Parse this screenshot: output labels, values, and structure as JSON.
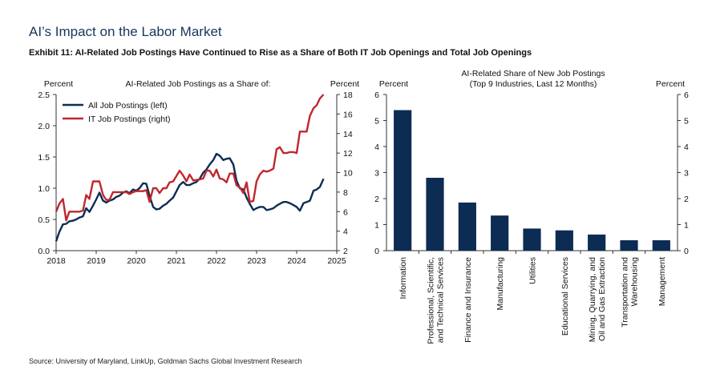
{
  "header": {
    "title": "AI’s Impact on the Labor Market",
    "exhibit": "Exhibit 11: AI-Related Job Postings Have Continued to Rise as a Share of Both IT Job Openings and Total Job Openings"
  },
  "footer": {
    "source": "Source: University of Maryland, LinkUp, Goldman Sachs Global Investment Research"
  },
  "colors": {
    "title": "#16365c",
    "all_jobs": "#0d2c54",
    "it_jobs": "#c0272d",
    "bar": "#0d2c54"
  },
  "chart_data": [
    {
      "type": "line",
      "title": "AI-Related Job Postings as a Share of:",
      "ylabel_left": "Percent",
      "ylabel_right": "Percent",
      "xlim": [
        2018,
        2025
      ],
      "ylim_left": [
        0,
        2.5
      ],
      "ylim_right": [
        2,
        18
      ],
      "x_ticks": [
        "2018",
        "2019",
        "2020",
        "2021",
        "2022",
        "2023",
        "2024",
        "2025"
      ],
      "y_ticks_left": [
        "0.0",
        "0.5",
        "1.0",
        "1.5",
        "2.0",
        "2.5"
      ],
      "y_ticks_right": [
        "2",
        "4",
        "6",
        "8",
        "10",
        "12",
        "14",
        "16",
        "18"
      ],
      "legend_position": "top-left",
      "grid": false,
      "series": [
        {
          "name": "All Job Postings (left)",
          "axis": "left",
          "points": [
            [
              2018.0,
              0.15
            ],
            [
              2018.08,
              0.3
            ],
            [
              2018.17,
              0.42
            ],
            [
              2018.25,
              0.43
            ],
            [
              2018.33,
              0.47
            ],
            [
              2018.42,
              0.48
            ],
            [
              2018.5,
              0.5
            ],
            [
              2018.58,
              0.53
            ],
            [
              2018.67,
              0.55
            ],
            [
              2018.75,
              0.68
            ],
            [
              2018.83,
              0.62
            ],
            [
              2018.92,
              0.72
            ],
            [
              2019.0,
              0.82
            ],
            [
              2019.08,
              0.93
            ],
            [
              2019.17,
              0.8
            ],
            [
              2019.25,
              0.77
            ],
            [
              2019.33,
              0.8
            ],
            [
              2019.42,
              0.82
            ],
            [
              2019.5,
              0.86
            ],
            [
              2019.58,
              0.88
            ],
            [
              2019.67,
              0.93
            ],
            [
              2019.75,
              0.95
            ],
            [
              2019.83,
              0.92
            ],
            [
              2019.92,
              0.98
            ],
            [
              2020.0,
              0.96
            ],
            [
              2020.08,
              1.0
            ],
            [
              2020.17,
              1.08
            ],
            [
              2020.25,
              1.07
            ],
            [
              2020.33,
              0.88
            ],
            [
              2020.42,
              0.7
            ],
            [
              2020.5,
              0.66
            ],
            [
              2020.58,
              0.67
            ],
            [
              2020.67,
              0.72
            ],
            [
              2020.75,
              0.75
            ],
            [
              2020.83,
              0.8
            ],
            [
              2020.92,
              0.85
            ],
            [
              2021.0,
              0.95
            ],
            [
              2021.08,
              1.05
            ],
            [
              2021.17,
              1.1
            ],
            [
              2021.25,
              1.05
            ],
            [
              2021.33,
              1.05
            ],
            [
              2021.42,
              1.08
            ],
            [
              2021.5,
              1.1
            ],
            [
              2021.58,
              1.15
            ],
            [
              2021.67,
              1.25
            ],
            [
              2021.75,
              1.3
            ],
            [
              2021.83,
              1.38
            ],
            [
              2021.92,
              1.45
            ],
            [
              2022.0,
              1.55
            ],
            [
              2022.08,
              1.52
            ],
            [
              2022.17,
              1.45
            ],
            [
              2022.25,
              1.47
            ],
            [
              2022.33,
              1.48
            ],
            [
              2022.42,
              1.38
            ],
            [
              2022.5,
              1.12
            ],
            [
              2022.58,
              1.0
            ],
            [
              2022.67,
              0.98
            ],
            [
              2022.75,
              0.85
            ],
            [
              2022.83,
              0.75
            ],
            [
              2022.92,
              0.65
            ],
            [
              2023.0,
              0.68
            ],
            [
              2023.08,
              0.7
            ],
            [
              2023.17,
              0.7
            ],
            [
              2023.25,
              0.65
            ],
            [
              2023.33,
              0.66
            ],
            [
              2023.42,
              0.68
            ],
            [
              2023.5,
              0.72
            ],
            [
              2023.58,
              0.75
            ],
            [
              2023.67,
              0.78
            ],
            [
              2023.75,
              0.78
            ],
            [
              2023.83,
              0.76
            ],
            [
              2023.92,
              0.73
            ],
            [
              2024.0,
              0.7
            ],
            [
              2024.08,
              0.64
            ],
            [
              2024.17,
              0.76
            ],
            [
              2024.25,
              0.78
            ],
            [
              2024.33,
              0.8
            ],
            [
              2024.42,
              0.96
            ],
            [
              2024.5,
              0.98
            ],
            [
              2024.58,
              1.02
            ],
            [
              2024.67,
              1.15
            ]
          ]
        },
        {
          "name": "IT Job Postings (right)",
          "axis": "right",
          "points": [
            [
              2018.0,
              6.0
            ],
            [
              2018.08,
              6.8
            ],
            [
              2018.17,
              7.3
            ],
            [
              2018.25,
              5.1
            ],
            [
              2018.33,
              6.0
            ],
            [
              2018.58,
              6.0
            ],
            [
              2018.67,
              6.1
            ],
            [
              2018.75,
              7.7
            ],
            [
              2018.83,
              7.3
            ],
            [
              2018.92,
              9.1
            ],
            [
              2019.08,
              9.1
            ],
            [
              2019.17,
              7.7
            ],
            [
              2019.25,
              7.2
            ],
            [
              2019.33,
              7.2
            ],
            [
              2019.42,
              8.0
            ],
            [
              2019.75,
              8.0
            ],
            [
              2019.83,
              7.8
            ],
            [
              2019.92,
              8.0
            ],
            [
              2020.0,
              8.1
            ],
            [
              2020.17,
              8.1
            ],
            [
              2020.25,
              8.2
            ],
            [
              2020.33,
              7.0
            ],
            [
              2020.42,
              8.4
            ],
            [
              2020.5,
              8.4
            ],
            [
              2020.58,
              7.9
            ],
            [
              2020.67,
              8.4
            ],
            [
              2020.75,
              8.4
            ],
            [
              2020.83,
              9.0
            ],
            [
              2020.92,
              9.1
            ],
            [
              2021.08,
              10.2
            ],
            [
              2021.17,
              9.7
            ],
            [
              2021.25,
              9.1
            ],
            [
              2021.33,
              9.8
            ],
            [
              2021.42,
              9.2
            ],
            [
              2021.58,
              9.3
            ],
            [
              2021.67,
              9.4
            ],
            [
              2021.75,
              10.2
            ],
            [
              2021.83,
              10.2
            ],
            [
              2021.92,
              9.6
            ],
            [
              2022.0,
              10.3
            ],
            [
              2022.08,
              9.4
            ],
            [
              2022.17,
              9.3
            ],
            [
              2022.25,
              9.0
            ],
            [
              2022.33,
              9.9
            ],
            [
              2022.42,
              9.9
            ],
            [
              2022.5,
              8.7
            ],
            [
              2022.58,
              8.5
            ],
            [
              2022.67,
              7.9
            ],
            [
              2022.75,
              9.0
            ],
            [
              2022.83,
              7.0
            ],
            [
              2022.92,
              7.1
            ],
            [
              2023.0,
              9.1
            ],
            [
              2023.08,
              9.8
            ],
            [
              2023.17,
              10.2
            ],
            [
              2023.25,
              10.1
            ],
            [
              2023.33,
              10.2
            ],
            [
              2023.42,
              10.4
            ],
            [
              2023.5,
              12.4
            ],
            [
              2023.58,
              12.6
            ],
            [
              2023.67,
              12.0
            ],
            [
              2023.75,
              12.0
            ],
            [
              2023.83,
              12.1
            ],
            [
              2023.92,
              12.1
            ],
            [
              2024.0,
              12.0
            ],
            [
              2024.08,
              14.2
            ],
            [
              2024.17,
              14.2
            ],
            [
              2024.25,
              14.2
            ],
            [
              2024.33,
              15.8
            ],
            [
              2024.42,
              16.6
            ],
            [
              2024.5,
              16.9
            ],
            [
              2024.58,
              17.6
            ],
            [
              2024.67,
              18.0
            ]
          ]
        }
      ]
    },
    {
      "type": "bar",
      "title": "AI-Related Share of New Job Postings",
      "subtitle": "(Top 9 Industries, Last 12 Months)",
      "ylabel_left": "Percent",
      "ylabel_right": "Percent",
      "ylim": [
        0,
        6
      ],
      "y_ticks": [
        "0",
        "1",
        "2",
        "3",
        "4",
        "5",
        "6"
      ],
      "categories": [
        [
          "Information"
        ],
        [
          "Professional, Scientific,",
          "and Technical Services"
        ],
        [
          "Finance and Insurance"
        ],
        [
          "Manufacturing"
        ],
        [
          "Utilities"
        ],
        [
          "Educational Services"
        ],
        [
          "Mining, Quarrying, and",
          "Oil and Gas Extraction"
        ],
        [
          "Transportation and",
          "Warehousing"
        ],
        [
          "Management"
        ]
      ],
      "values": [
        5.4,
        2.8,
        1.85,
        1.35,
        0.85,
        0.78,
        0.62,
        0.4,
        0.4
      ]
    }
  ]
}
